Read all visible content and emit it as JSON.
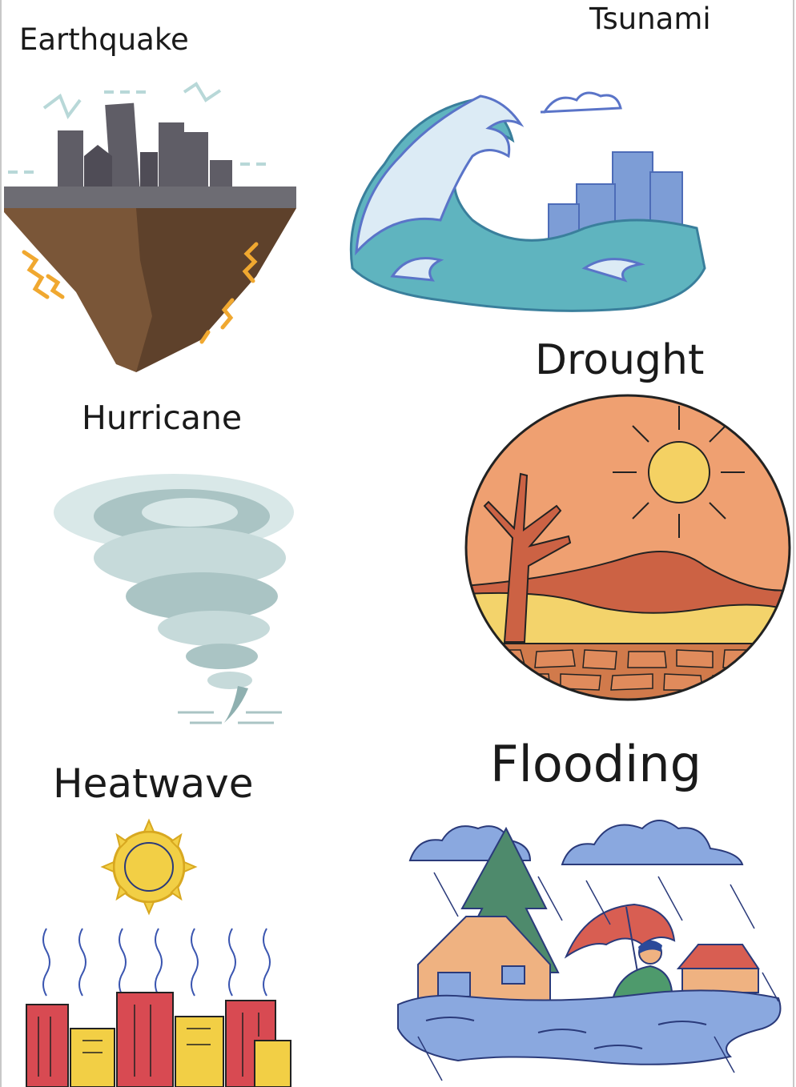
{
  "labels": {
    "earthquake": "Earthquake",
    "tsunami": "Tsunami",
    "drought": "Drought",
    "hurricane": "Hurricane",
    "heatwave": "Heatwave",
    "flooding": "Flooding"
  },
  "colors": {
    "ground_brown": "#7a5638",
    "ground_dark": "#5e412b",
    "buildings": "#5f5d66",
    "tremor_orange": "#f0a830",
    "wave_teal": "#5fb4bf",
    "wave_foam": "#dcebf5",
    "city_blue": "#7d9dd6",
    "drought_sky": "#efa071",
    "drought_sun": "#f4d163",
    "drought_mountain": "#cc6244",
    "drought_sand": "#f3d36b",
    "tornado_gray": "#aac4c4",
    "heat_red": "#d84a52",
    "heat_yellow": "#f2cf45",
    "flood_blue": "#8aa8df",
    "tree_green": "#4e8a6c",
    "house_peach": "#efb281",
    "umbrella_red": "#d85e52"
  }
}
